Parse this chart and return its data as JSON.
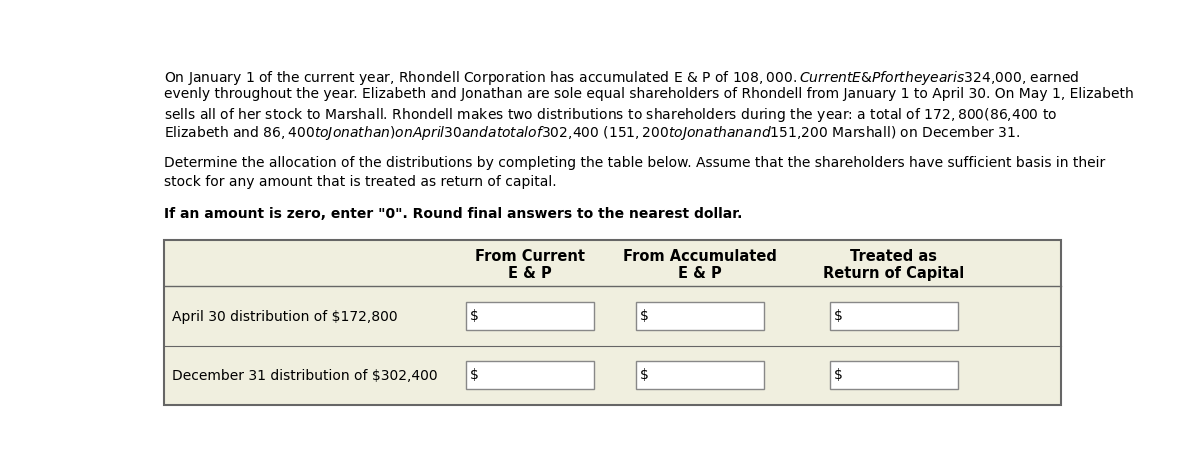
{
  "paragraph1_lines": [
    "On January 1 of the current year, Rhondell Corporation has accumulated E & P of $108,000. Current E & P for the year is $324,000, earned",
    "evenly throughout the year. Elizabeth and Jonathan are sole equal shareholders of Rhondell from January 1 to April 30. On May 1, Elizabeth",
    "sells all of her stock to Marshall. Rhondell makes two distributions to shareholders during the year: a total of $172,800 ($86,400 to",
    "Elizabeth and $86,400 to Jonathan) on April 30 and a total of $302,400 ($151,200 to Jonathan and $151,200 Marshall) on December 31."
  ],
  "paragraph2_lines": [
    "Determine the allocation of the distributions by completing the table below. Assume that the shareholders have sufficient basis in their",
    "stock for any amount that is treated as return of capital."
  ],
  "paragraph3": "If an amount is zero, enter \"0\". Round final answers to the nearest dollar.",
  "col_headers_line1": [
    "From Current",
    "From Accumulated",
    "Treated as"
  ],
  "col_headers_line2": [
    "E & P",
    "E & P",
    "Return of Capital"
  ],
  "row_labels": [
    "April 30 distribution of $172,800",
    "December 31 distribution of $302,400"
  ],
  "bg_color": "#f0efdf",
  "table_border_color": "#666666",
  "box_border_color": "#888888",
  "box_fill_color": "#ffffff",
  "text_color": "#000000",
  "font_size": 10.0,
  "header_font_size": 10.5
}
